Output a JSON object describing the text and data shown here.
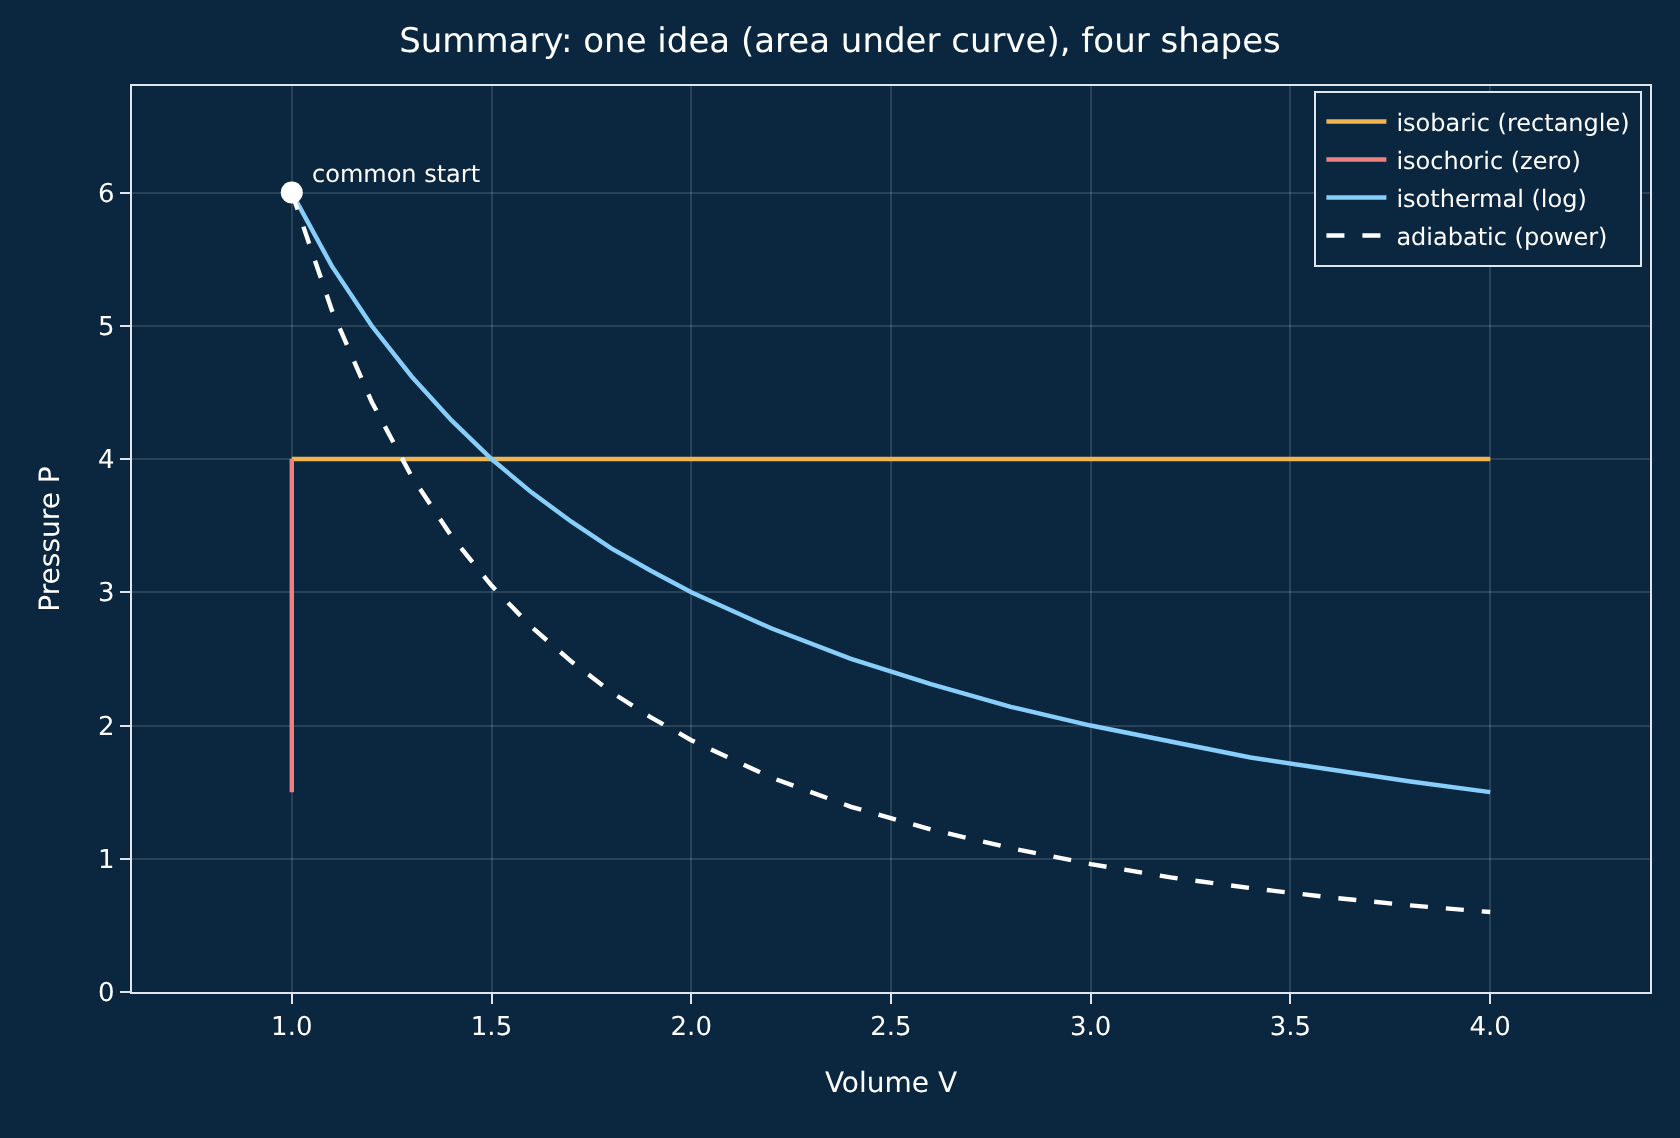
{
  "chart_data": {
    "type": "line",
    "title": "Summary: one idea (area under curve), four shapes",
    "xlabel": "Volume V",
    "ylabel": "Pressure P",
    "xlim": [
      0.6,
      4.4
    ],
    "xticks": [
      {
        "value": 1,
        "label": "1.0"
      },
      {
        "value": 1.5,
        "label": "1.5"
      },
      {
        "value": 2,
        "label": "2.0"
      },
      {
        "value": 2.5,
        "label": "2.5"
      },
      {
        "value": 3,
        "label": "3.0"
      },
      {
        "value": 3.5,
        "label": "3.5"
      },
      {
        "value": 4,
        "label": "4.0"
      }
    ],
    "ylim": [
      0,
      6.8
    ],
    "yticks": [
      0,
      1,
      2,
      3,
      4,
      5,
      6
    ],
    "grid": true,
    "legend": "top right",
    "series": [
      {
        "name": "isobaric (rectangle)",
        "color": "#f0b450",
        "x": [
          1,
          4
        ],
        "values": [
          4,
          4
        ],
        "line_style": "solid"
      },
      {
        "name": "isochoric (zero)",
        "color": "#f08080",
        "x": [
          1,
          1
        ],
        "values": [
          1.5,
          4
        ],
        "line_style": "solid"
      },
      {
        "name": "isothermal (log)",
        "color": "#87cefa",
        "x": [
          1.0,
          1.1,
          1.2,
          1.3,
          1.4,
          1.5,
          1.6,
          1.7,
          1.8,
          1.9,
          2.0,
          2.2,
          2.4,
          2.6,
          2.8,
          3.0,
          3.2,
          3.4,
          3.6,
          3.8,
          4.0
        ],
        "values": [
          6,
          5.45,
          5,
          4.62,
          4.29,
          4,
          3.75,
          3.53,
          3.33,
          3.16,
          3,
          2.73,
          2.5,
          2.31,
          2.14,
          2,
          1.88,
          1.76,
          1.67,
          1.58,
          1.5
        ],
        "line_style": "solid"
      },
      {
        "name": "adiabatic (power)",
        "color": "#ffffff",
        "x": [
          1.0,
          1.1,
          1.2,
          1.3,
          1.4,
          1.5,
          1.6,
          1.7,
          1.8,
          1.9,
          2.0,
          2.2,
          2.4,
          2.6,
          2.8,
          3.0,
          3.2,
          3.4,
          3.6,
          3.8,
          4.0
        ],
        "values": [
          6,
          5.12,
          4.43,
          3.87,
          3.42,
          3.05,
          2.74,
          2.48,
          2.25,
          2.06,
          1.89,
          1.61,
          1.39,
          1.22,
          1.08,
          0.96,
          0.86,
          0.78,
          0.71,
          0.65,
          0.6
        ],
        "line_style": "dashed"
      },
      {
        "type": "scatter",
        "color": "#ffffff",
        "x": [
          1
        ],
        "values": [
          6
        ],
        "marker": "circle"
      }
    ],
    "annotations": [
      {
        "text": "common start",
        "x": 1,
        "y": 6
      }
    ]
  }
}
